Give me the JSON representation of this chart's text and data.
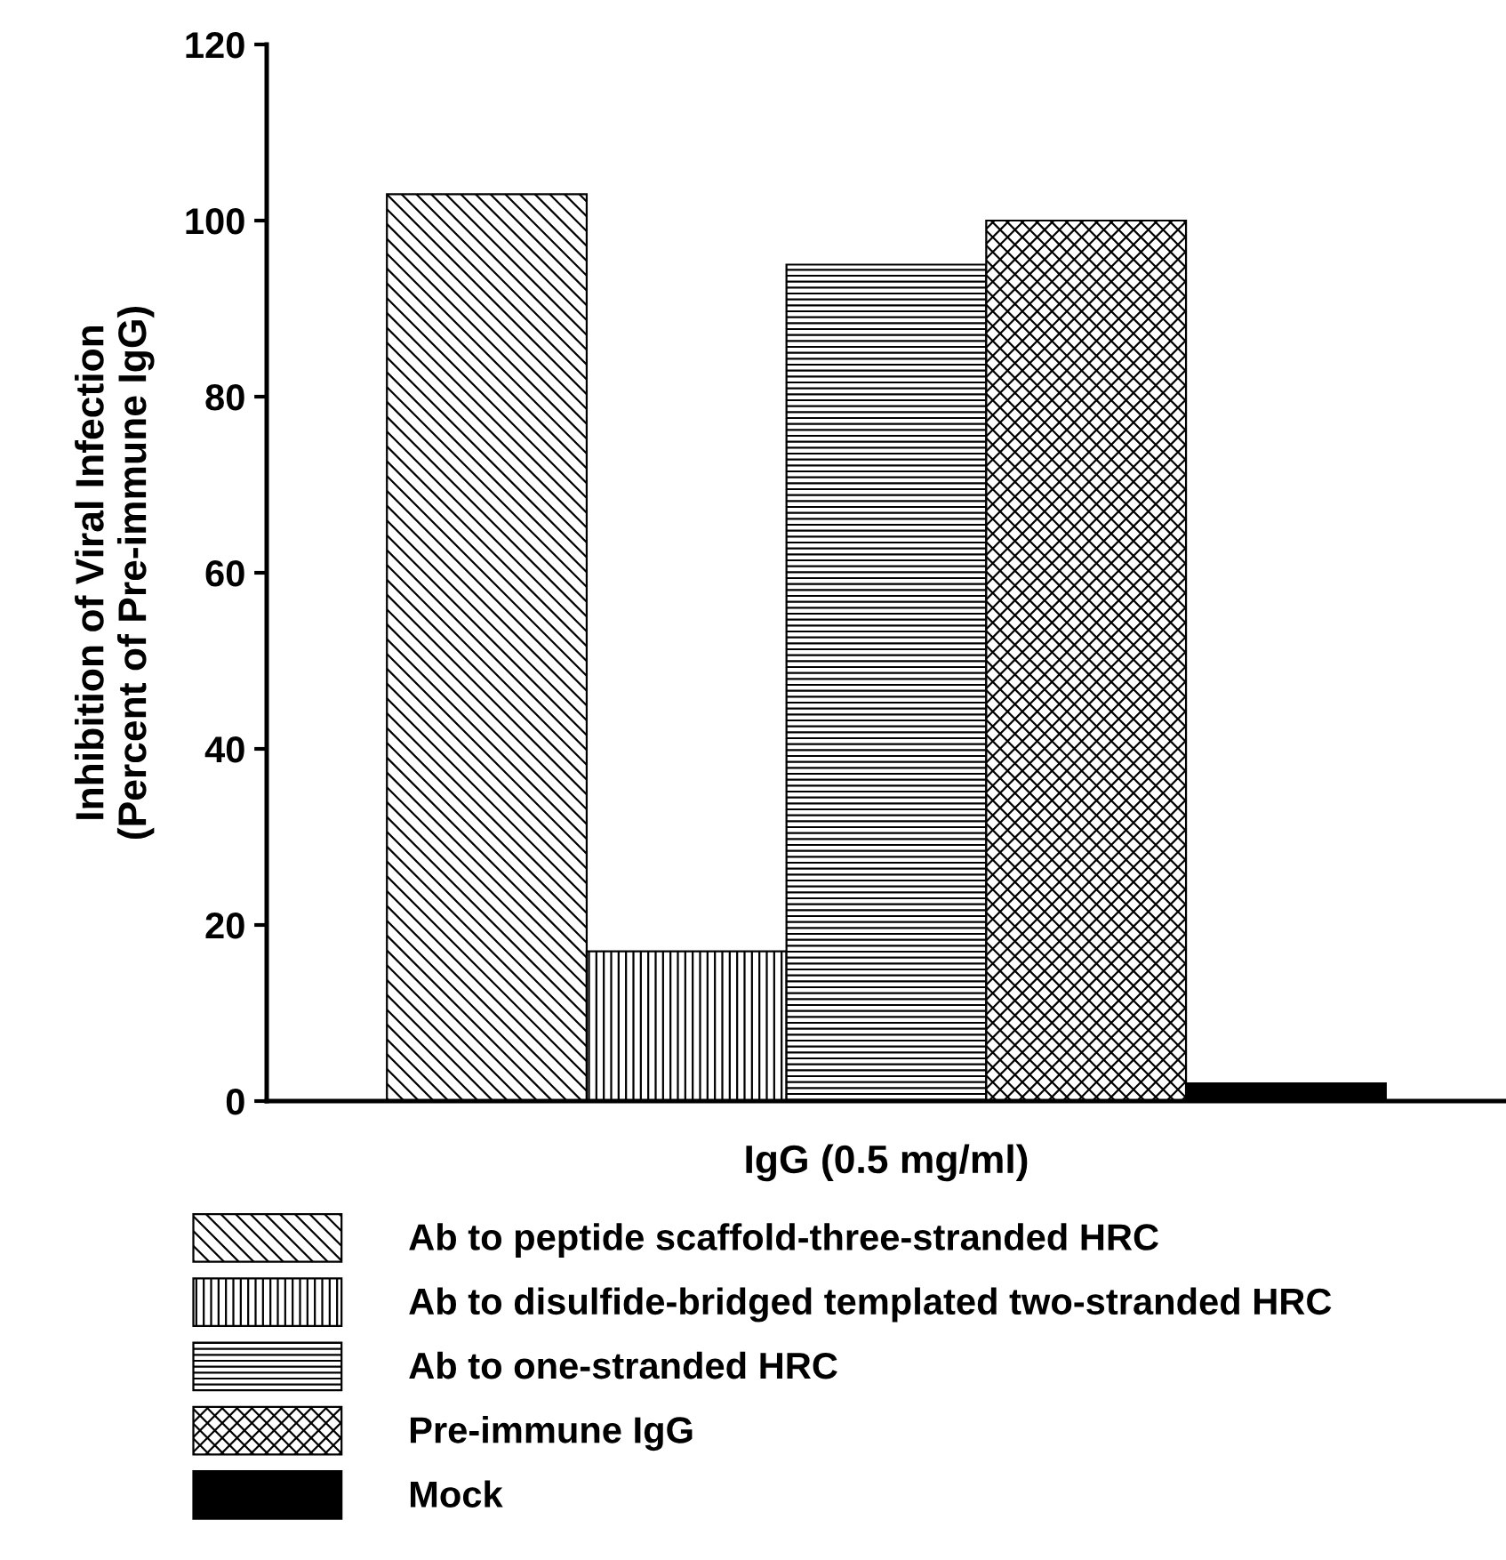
{
  "chart_data": {
    "type": "bar",
    "xlabel": "IgG (0.5 mg/ml)",
    "ylabel": "Inhibition of Viral Infection\n(Percent of Pre-immune IgG)",
    "categories": [
      null
    ],
    "series": [
      {
        "name": "Ab to peptide scaffold-three-stranded HRC",
        "color": "#000000",
        "values": [
          103
        ]
      },
      {
        "name": "Ab to disulfide-bridged templated two-stranded HRC",
        "color": "#000000",
        "values": [
          17
        ]
      },
      {
        "name": "Ab to one-stranded HRC",
        "color": "#000000",
        "values": [
          95
        ]
      },
      {
        "name": "Pre-immune IgG",
        "color": "#000000",
        "values": [
          100
        ]
      },
      {
        "name": "Mock",
        "color": "#000000",
        "values": [
          2
        ]
      }
    ],
    "ylim": [
      0,
      120
    ],
    "yticks": [
      0,
      20,
      40,
      60,
      80,
      100,
      120
    ],
    "grid": false,
    "legend": "bottom"
  }
}
